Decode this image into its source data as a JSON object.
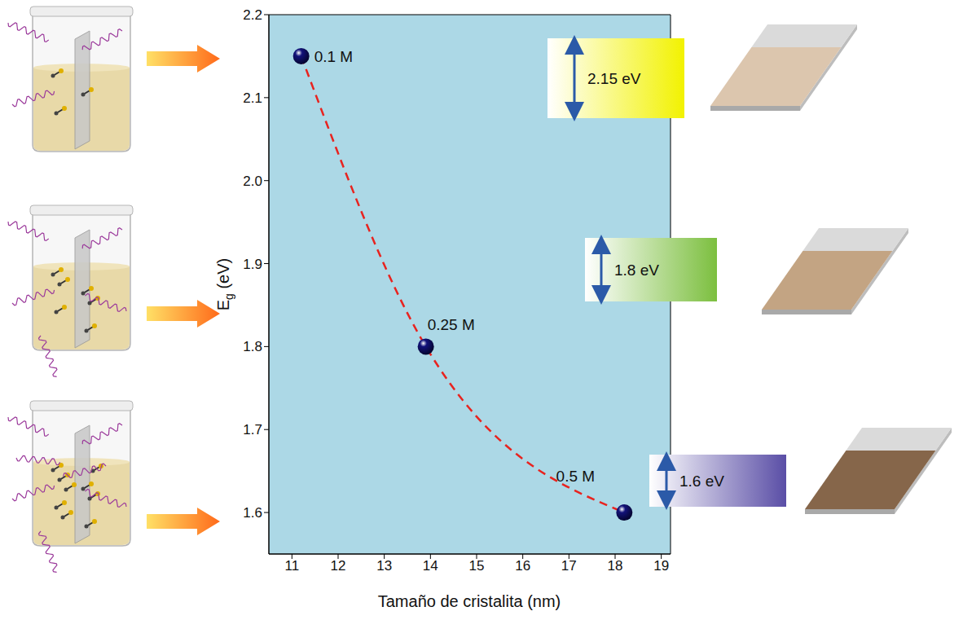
{
  "chart_data": {
    "type": "scatter",
    "xlabel": "Tamaño de cristalita (nm)",
    "ylabel": "Eg (eV)",
    "x": [
      11.2,
      13.9,
      18.2
    ],
    "series": [
      {
        "type": "line",
        "color": "#e8231f",
        "line_style": "dashed",
        "values": [
          2.15,
          1.8,
          1.6
        ]
      },
      {
        "type": "scatter",
        "color": "#12127a",
        "marker": "circle",
        "values": [
          2.15,
          1.8,
          1.6
        ]
      }
    ],
    "point_labels": [
      "0.1 M",
      "0.25 M",
      "0.5 M"
    ],
    "gap_labels": [
      "2.15 eV",
      "1.8 eV",
      "1.6 eV"
    ],
    "xlim": [
      10.5,
      19.2
    ],
    "xticks": [
      11,
      12,
      13,
      14,
      15,
      16,
      17,
      18,
      19
    ],
    "ylim": [
      1.55,
      2.2
    ],
    "yticks": [
      1.6,
      1.7,
      1.8,
      1.9,
      {
        "value": 2,
        "label": "2.0"
      },
      2.1,
      2.2
    ],
    "grid": false
  }
}
